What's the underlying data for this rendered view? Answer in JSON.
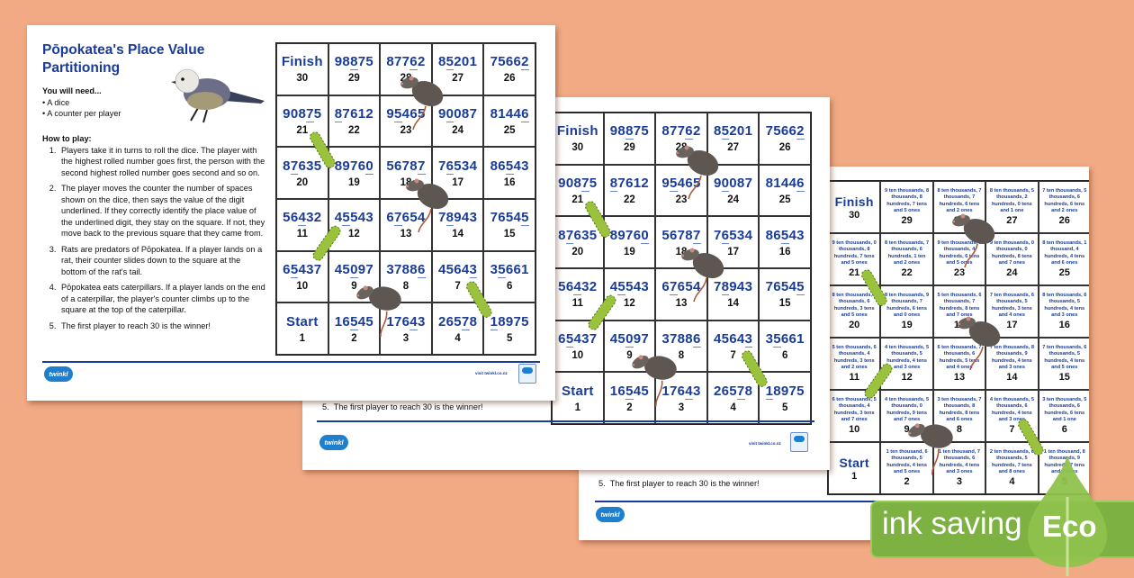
{
  "colors": {
    "background": "#f2aa84",
    "title_blue": "#1a3c98",
    "eco_green": "#7db142",
    "leaf_green": "#8fc24c"
  },
  "worksheet": {
    "title": "Pōpokatea's Place Value Partitioning",
    "you_will_need": "You will need...",
    "needs": [
      "• A dice",
      "• A counter per player"
    ],
    "how_to_play": "How to play:",
    "rules": [
      "Players take it in turns to roll the dice. The player with the highest rolled number goes first, the person with the second highest rolled number goes second and so on.",
      "The player moves the counter the number of spaces shown on the dice, then says the value of the digit underlined. If they correctly identify the place value of the underlined digit, they stay on the square. If not, they move back to the previous square that they came from.",
      "Rats are predators of Pōpokatea. If a player lands on a rat, their counter slides down to the square at the bottom of the rat's tail.",
      "Pōpokatea eats caterpillars. If a player lands on the end of a caterpillar, the player's counter climbs up to the square at the top of the caterpillar.",
      "The first player to reach 30 is the winner!"
    ],
    "last_rule_number": "5.",
    "footer_url": "visit twinkl.co.nz",
    "logo_text": "twinkl"
  },
  "board": {
    "finish_label": "Finish",
    "start_label": "Start",
    "rows": [
      [
        {
          "sq": "30",
          "label": "finish"
        },
        {
          "sq": "29",
          "num": "98875",
          "u": 2,
          "words": "9 ten thousands, 8 thousands, 8 hundreds, 7 tens and 5 ones"
        },
        {
          "sq": "28",
          "num": "87762",
          "u": 3,
          "words": "8 ten thousands, 7 thousands, 7 hundreds, 6 tens and 2 ones"
        },
        {
          "sq": "27",
          "num": "85201",
          "u": 1,
          "words": "8 ten thousands, 5 thousands, 2 hundreds, 0 tens and 1 one"
        },
        {
          "sq": "26",
          "num": "75662",
          "u": 4,
          "words": "7 ten thousands, 5 thousands, 6 hundreds, 6 tens and 2 ones"
        }
      ],
      [
        {
          "sq": "21",
          "num": "90875",
          "u": 3,
          "words": "9 ten thousands, 0 thousands, 8 hundreds, 7 tens and 5 ones"
        },
        {
          "sq": "22",
          "num": "87612",
          "u": 0,
          "words": "8 ten thousands, 7 thousands, 6 hundreds, 1 ten and 2 ones"
        },
        {
          "sq": "23",
          "num": "95465",
          "u": 1,
          "words": "9 ten thousands, 5 thousands, 4 hundreds, 6 tens and 5 ones"
        },
        {
          "sq": "24",
          "num": "90087",
          "u": 1,
          "words": "9 ten thousands, 0 thousands, 0 hundreds, 8 tens and 7 ones"
        },
        {
          "sq": "25",
          "num": "81446",
          "u": 4,
          "words": "8 ten thousands, 1 thousand, 4 hundreds, 4 tens and 6 ones"
        }
      ],
      [
        {
          "sq": "20",
          "num": "87635",
          "u": 1,
          "words": "8 ten thousands, 7 thousands, 6 hundreds, 3 tens and 5 ones"
        },
        {
          "sq": "19",
          "num": "89760",
          "u": 4,
          "words": "8 ten thousands, 9 thousands, 7 hundreds, 6 tens and 0 ones"
        },
        {
          "sq": "18",
          "num": "56787",
          "u": 4,
          "words": "5 ten thousands, 6 thousands, 7 hundreds, 8 tens and 7 ones"
        },
        {
          "sq": "17",
          "num": "76534",
          "u": 1,
          "words": "7 ten thousands, 6 thousands, 5 hundreds, 3 tens and 4 ones"
        },
        {
          "sq": "16",
          "num": "86543",
          "u": 2,
          "words": "8 ten thousands, 6 thousands, 5 hundreds, 4 tens and 3 ones"
        }
      ],
      [
        {
          "sq": "11",
          "num": "56432",
          "u": 2,
          "words": "5 ten thousands, 6 thousands, 4 hundreds, 3 tens and 2 ones"
        },
        {
          "sq": "12",
          "num": "45543",
          "u": 1,
          "words": "4 ten thousands, 5 thousands, 5 hundreds, 4 tens and 3 ones"
        },
        {
          "sq": "13",
          "num": "67654",
          "u": 1,
          "words": "6 ten thousands, 7 thousands, 6 hundreds, 5 tens and 4 ones"
        },
        {
          "sq": "14",
          "num": "78943",
          "u": 1,
          "words": "7 ten thousands, 8 thousands, 9 hundreds, 4 tens and 3 ones"
        },
        {
          "sq": "15",
          "num": "76545",
          "u": 4,
          "words": "7 ten thousands, 6 thousands, 5 hundreds, 4 tens and 5 ones"
        }
      ],
      [
        {
          "sq": "10",
          "num": "65437",
          "u": 1,
          "words": "6 ten thousands, 5 thousands, 4 hundreds, 3 tens and 7 ones"
        },
        {
          "sq": "9",
          "num": "45097",
          "u": 2,
          "words": "4 ten thousands, 5 thousands, 0 hundreds, 9 tens and 7 ones"
        },
        {
          "sq": "8",
          "num": "37886",
          "u": 4,
          "words": "3 ten thousands, 7 thousands, 8 hundreds, 8 tens and 6 ones"
        },
        {
          "sq": "7",
          "num": "45643",
          "u": 4,
          "words": "4 ten thousands, 5 thousands, 6 hundreds, 4 tens and 3 ones"
        },
        {
          "sq": "6",
          "num": "35661",
          "u": 1,
          "words": "3 ten thousands, 5 thousands, 6 hundreds, 6 tens and 1 one"
        }
      ],
      [
        {
          "sq": "1",
          "label": "start"
        },
        {
          "sq": "2",
          "num": "16545",
          "u": 2,
          "words": "1 ten thousand, 6 thousands, 5 hundreds, 4 tens and 5 ones"
        },
        {
          "sq": "3",
          "num": "17643",
          "u": 3,
          "words": "1 ten thousand, 7 thousands, 6 hundreds, 4 tens and 3 ones"
        },
        {
          "sq": "4",
          "num": "26578",
          "u": 3,
          "words": "2 ten thousands, 6 thousands, 5 hundreds, 7 tens and 8 ones"
        },
        {
          "sq": "5",
          "num": "18975",
          "u": 0,
          "words": "1 ten thousand, 8 thousands, 9 hundreds, 7 tens and 5 ones"
        }
      ]
    ]
  },
  "eco_badge": {
    "text": "ink saving",
    "label": "Eco",
    "icon": "leaf-icon"
  }
}
